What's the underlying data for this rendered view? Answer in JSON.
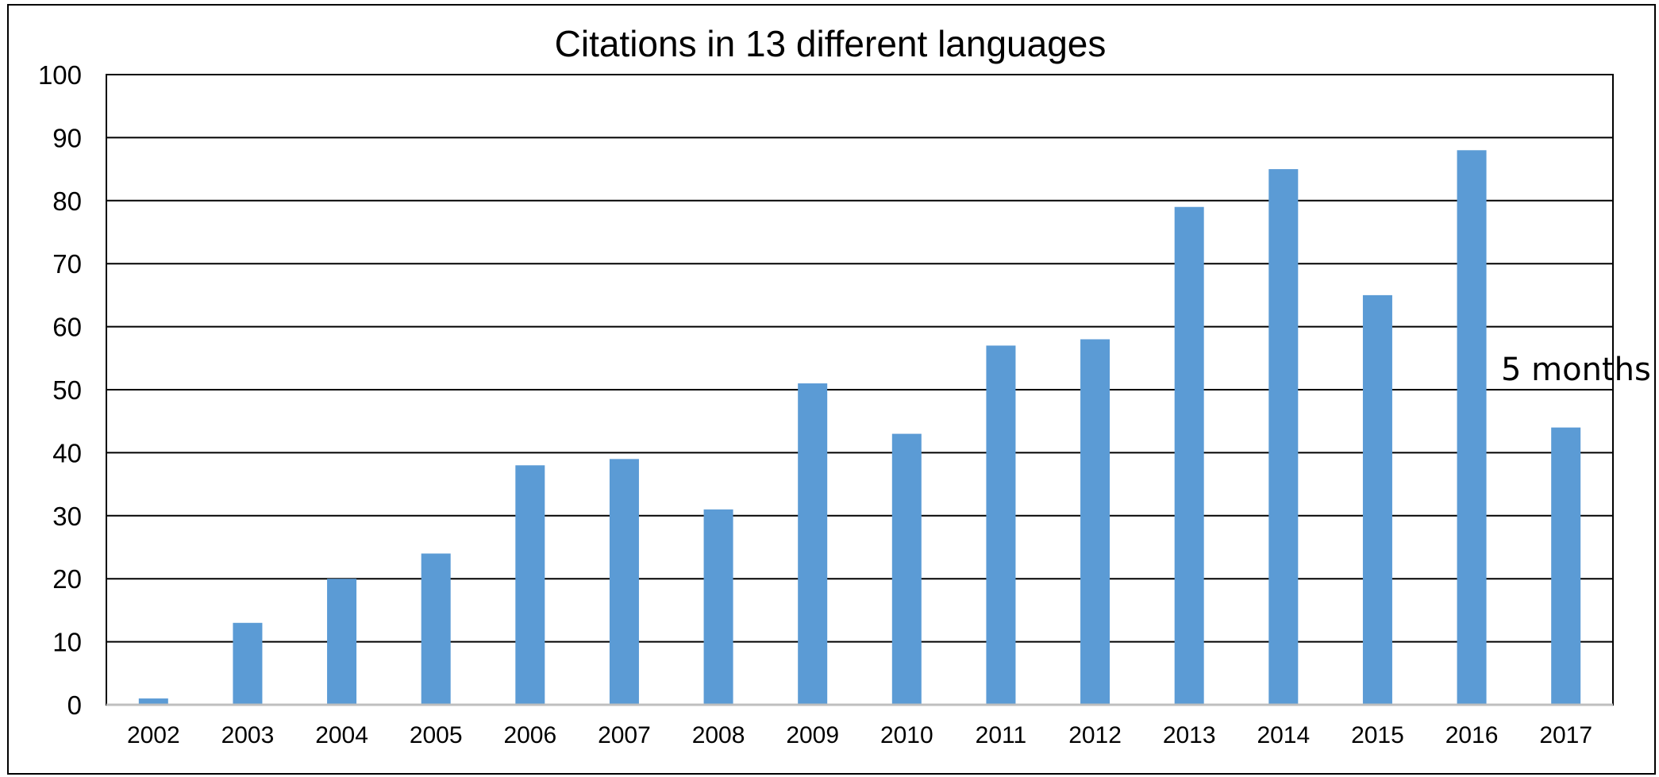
{
  "chart_data": {
    "type": "bar",
    "title": "Citations in 13 different languages",
    "xlabel": "",
    "ylabel": "",
    "categories": [
      "2002",
      "2003",
      "2004",
      "2005",
      "2006",
      "2007",
      "2008",
      "2009",
      "2010",
      "2011",
      "2012",
      "2013",
      "2014",
      "2015",
      "2016",
      "2017"
    ],
    "values": [
      1,
      13,
      20,
      24,
      38,
      39,
      31,
      51,
      43,
      57,
      58,
      79,
      85,
      65,
      88,
      44
    ],
    "ylim": [
      0,
      100
    ],
    "yticks": [
      "0",
      "10",
      "20",
      "30",
      "40",
      "50",
      "60",
      "70",
      "80",
      "90",
      "100"
    ],
    "grid": true,
    "legend": "none",
    "bar_color": "#5b9bd5",
    "annotations": [
      {
        "text": "5 months"
      }
    ]
  }
}
